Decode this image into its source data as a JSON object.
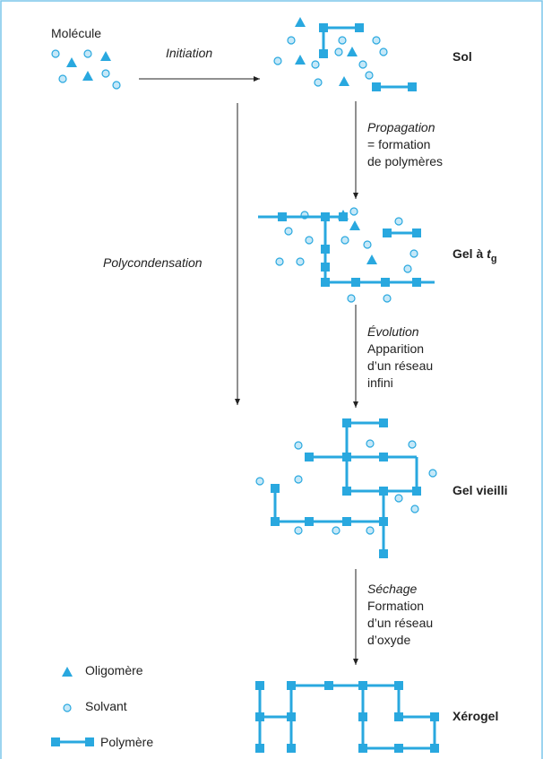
{
  "molecule": "Molécule",
  "initiation": "Initiation",
  "polycondensation": "Polycondensation",
  "stages": [
    {
      "label": "Sol"
    },
    {
      "label": "Gel à",
      "variable": "t",
      "subscript": "g"
    },
    {
      "label": "Gel vieilli"
    },
    {
      "label": "Xérogel"
    }
  ],
  "transitions": [
    {
      "title": "Propagation",
      "lines": [
        "= formation",
        "de polymères"
      ]
    },
    {
      "title": "Évolution",
      "lines": [
        "Apparition",
        "d’un réseau",
        "infini"
      ]
    },
    {
      "title": "Séchage",
      "lines": [
        "Formation",
        "d’un réseau",
        "d’oxyde"
      ]
    }
  ],
  "legend": [
    "Oligomère",
    "Solvant",
    "Polymère"
  ]
}
